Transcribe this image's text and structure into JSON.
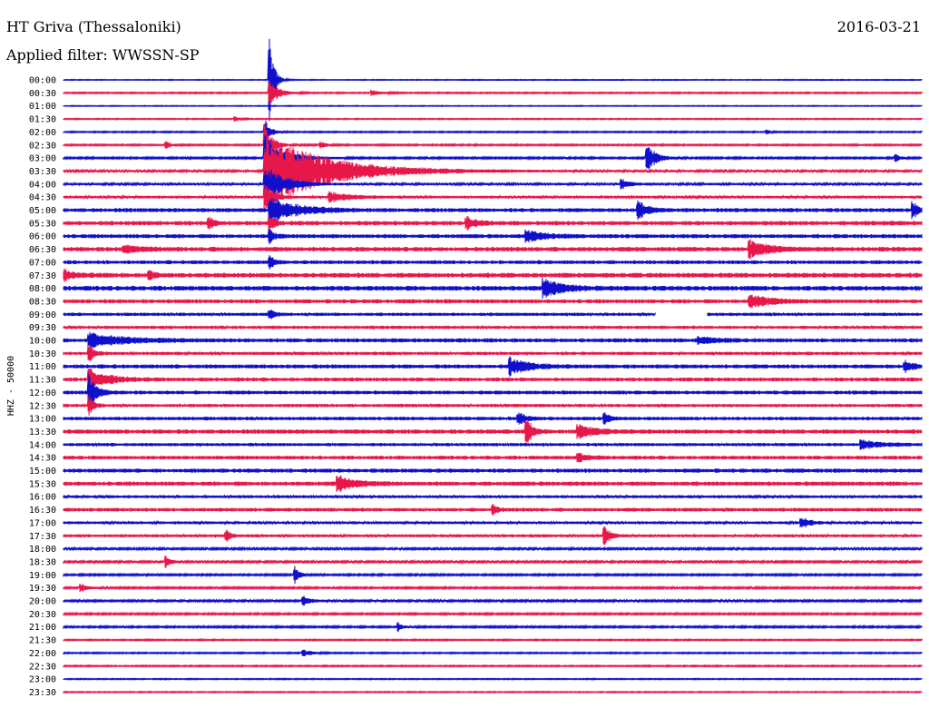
{
  "header": {
    "station": "HT Griva (Thessaloniki)",
    "date": "2016-03-21",
    "filter": "Applied filter: WWSSN-SP"
  },
  "chart_data": {
    "type": "line",
    "title": "HT Griva (Thessaloniki)",
    "date": "2016-03-21",
    "filter": "WWSSN-SP",
    "ylabel": "HHZ - 50000",
    "trace_colors": [
      "#1010cc",
      "#e8174a"
    ],
    "rows": [
      "00:00",
      "00:30",
      "01:00",
      "01:30",
      "02:00",
      "02:30",
      "03:00",
      "03:30",
      "04:00",
      "04:30",
      "05:00",
      "05:30",
      "06:00",
      "06:30",
      "07:00",
      "07:30",
      "08:00",
      "08:30",
      "09:00",
      "09:30",
      "10:00",
      "10:30",
      "11:00",
      "11:30",
      "12:00",
      "12:30",
      "13:00",
      "13:30",
      "14:00",
      "14:30",
      "15:00",
      "15:30",
      "16:00",
      "16:30",
      "17:00",
      "17:30",
      "18:00",
      "18:30",
      "19:00",
      "19:30",
      "20:00",
      "20:30",
      "21:00",
      "21:30",
      "22:00",
      "22:30",
      "23:00",
      "23:30"
    ],
    "noise": [
      0.3,
      0.5,
      0.3,
      0.4,
      0.5,
      0.6,
      0.7,
      0.9,
      1.0,
      1.1,
      1.6,
      1.7,
      1.6,
      1.8,
      1.5,
      1.9,
      1.9,
      1.6,
      1.3,
      1.3,
      1.6,
      1.3,
      1.6,
      1.5,
      1.5,
      1.3,
      1.4,
      1.7,
      1.3,
      1.5,
      1.6,
      1.7,
      1.2,
      1.4,
      1.1,
      1.2,
      0.8,
      0.8,
      0.7,
      0.7,
      0.8,
      0.7,
      0.7,
      0.5,
      0.5,
      0.5,
      0.4,
      0.4
    ],
    "events": [
      {
        "row": 0,
        "x": 0.24,
        "amp": 48,
        "dur": 0.005
      },
      {
        "row": 1,
        "x": 0.24,
        "amp": 15,
        "dur": 0.01
      },
      {
        "row": 1,
        "x": 0.36,
        "amp": 3,
        "dur": 0.01
      },
      {
        "row": 3,
        "x": 0.2,
        "amp": 3,
        "dur": 0.005
      },
      {
        "row": 4,
        "x": 0.235,
        "amp": 15,
        "dur": 0.006
      },
      {
        "row": 4,
        "x": 0.82,
        "amp": 2,
        "dur": 0.005
      },
      {
        "row": 5,
        "x": 0.235,
        "amp": 25,
        "dur": 0.008
      },
      {
        "row": 5,
        "x": 0.12,
        "amp": 4,
        "dur": 0.005
      },
      {
        "row": 5,
        "x": 0.3,
        "amp": 4,
        "dur": 0.006
      },
      {
        "row": 6,
        "x": 0.235,
        "amp": 28,
        "dur": 0.02
      },
      {
        "row": 6,
        "x": 0.68,
        "amp": 16,
        "dur": 0.01
      },
      {
        "row": 6,
        "x": 0.97,
        "amp": 4,
        "dur": 0.005
      },
      {
        "row": 7,
        "x": 0.235,
        "amp": 40,
        "dur": 0.07
      },
      {
        "row": 8,
        "x": 0.235,
        "amp": 22,
        "dur": 0.02
      },
      {
        "row": 8,
        "x": 0.65,
        "amp": 6,
        "dur": 0.008
      },
      {
        "row": 9,
        "x": 0.235,
        "amp": 14,
        "dur": 0.01
      },
      {
        "row": 9,
        "x": 0.31,
        "amp": 6,
        "dur": 0.02
      },
      {
        "row": 10,
        "x": 0.24,
        "amp": 14,
        "dur": 0.03
      },
      {
        "row": 10,
        "x": 0.67,
        "amp": 10,
        "dur": 0.01
      },
      {
        "row": 10,
        "x": 0.99,
        "amp": 10,
        "dur": 0.005
      },
      {
        "row": 11,
        "x": 0.24,
        "amp": 10,
        "dur": 0.005
      },
      {
        "row": 11,
        "x": 0.17,
        "amp": 8,
        "dur": 0.005
      },
      {
        "row": 11,
        "x": 0.47,
        "amp": 7,
        "dur": 0.01
      },
      {
        "row": 12,
        "x": 0.24,
        "amp": 8,
        "dur": 0.005
      },
      {
        "row": 12,
        "x": 0.54,
        "amp": 6,
        "dur": 0.02
      },
      {
        "row": 13,
        "x": 0.8,
        "amp": 10,
        "dur": 0.02
      },
      {
        "row": 13,
        "x": 0.07,
        "amp": 4,
        "dur": 0.02
      },
      {
        "row": 14,
        "x": 0.24,
        "amp": 8,
        "dur": 0.005
      },
      {
        "row": 15,
        "x": 0.0,
        "amp": 6,
        "dur": 0.01
      },
      {
        "row": 15,
        "x": 0.1,
        "amp": 5,
        "dur": 0.005
      },
      {
        "row": 16,
        "x": 0.56,
        "amp": 10,
        "dur": 0.02
      },
      {
        "row": 17,
        "x": 0.8,
        "amp": 8,
        "dur": 0.02
      },
      {
        "row": 18,
        "x": 0.24,
        "amp": 6,
        "dur": 0.005
      },
      {
        "row": 20,
        "x": 0.03,
        "amp": 8,
        "dur": 0.04
      },
      {
        "row": 20,
        "x": 0.74,
        "amp": 4,
        "dur": 0.02
      },
      {
        "row": 21,
        "x": 0.03,
        "amp": 10,
        "dur": 0.005
      },
      {
        "row": 22,
        "x": 0.52,
        "amp": 10,
        "dur": 0.02
      },
      {
        "row": 22,
        "x": 0.98,
        "amp": 6,
        "dur": 0.01
      },
      {
        "row": 23,
        "x": 0.03,
        "amp": 12,
        "dur": 0.02
      },
      {
        "row": 24,
        "x": 0.03,
        "amp": 20,
        "dur": 0.008
      },
      {
        "row": 25,
        "x": 0.03,
        "amp": 10,
        "dur": 0.005
      },
      {
        "row": 26,
        "x": 0.53,
        "amp": 6,
        "dur": 0.01
      },
      {
        "row": 26,
        "x": 0.63,
        "amp": 7,
        "dur": 0.005
      },
      {
        "row": 27,
        "x": 0.54,
        "amp": 16,
        "dur": 0.006
      },
      {
        "row": 27,
        "x": 0.6,
        "amp": 7,
        "dur": 0.02
      },
      {
        "row": 28,
        "x": 0.93,
        "amp": 5,
        "dur": 0.02
      },
      {
        "row": 29,
        "x": 0.6,
        "amp": 5,
        "dur": 0.01
      },
      {
        "row": 31,
        "x": 0.32,
        "amp": 8,
        "dur": 0.02
      },
      {
        "row": 33,
        "x": 0.5,
        "amp": 6,
        "dur": 0.005
      },
      {
        "row": 34,
        "x": 0.86,
        "amp": 6,
        "dur": 0.01
      },
      {
        "row": 35,
        "x": 0.19,
        "amp": 6,
        "dur": 0.005
      },
      {
        "row": 35,
        "x": 0.63,
        "amp": 12,
        "dur": 0.006
      },
      {
        "row": 37,
        "x": 0.12,
        "amp": 6,
        "dur": 0.005
      },
      {
        "row": 38,
        "x": 0.27,
        "amp": 10,
        "dur": 0.005
      },
      {
        "row": 39,
        "x": 0.02,
        "amp": 5,
        "dur": 0.008
      },
      {
        "row": 40,
        "x": 0.28,
        "amp": 5,
        "dur": 0.01
      },
      {
        "row": 42,
        "x": 0.39,
        "amp": 5,
        "dur": 0.005
      },
      {
        "row": 44,
        "x": 0.28,
        "amp": 4,
        "dur": 0.01
      }
    ],
    "gaps": [
      {
        "row": 18,
        "x0": 0.69,
        "x1": 0.75
      }
    ]
  }
}
